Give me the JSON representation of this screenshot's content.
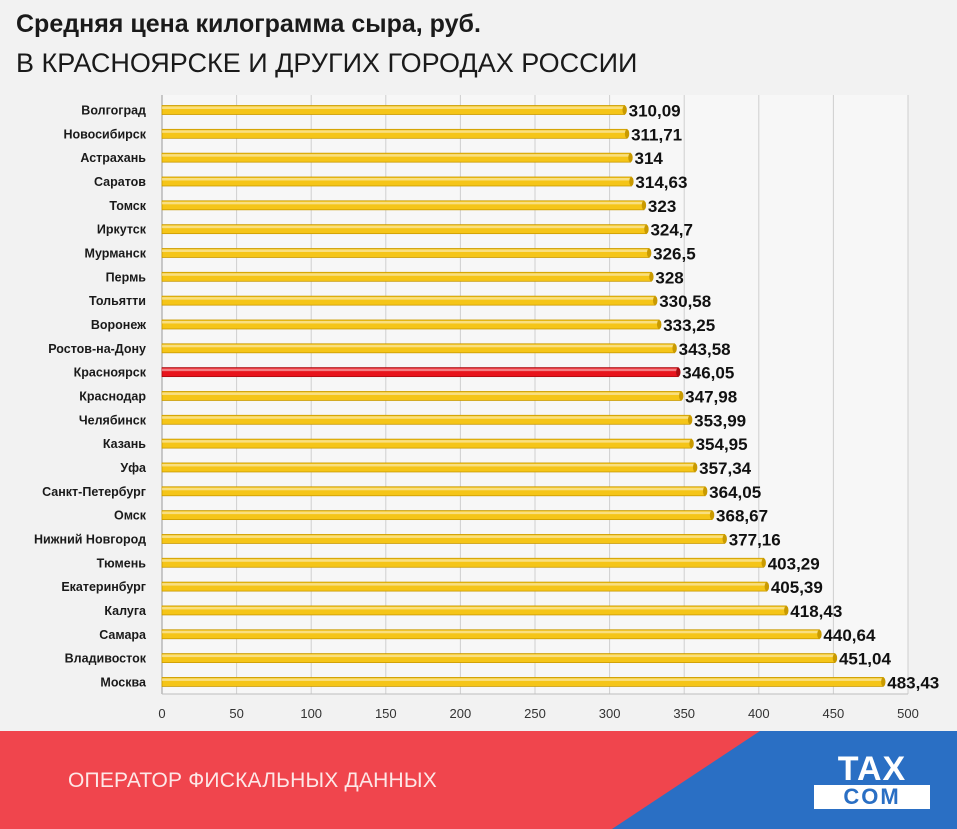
{
  "header": {
    "title": "Средняя цена килограмма сыра, руб.",
    "subtitle": "В КРАСНОЯРСКЕ И ДРУГИХ ГОРОДАХ РОССИИ"
  },
  "chart_data": {
    "type": "bar",
    "orientation": "horizontal",
    "title": "Средняя цена килограмма сыра, руб.",
    "subtitle": "В КРАСНОЯРСКЕ И ДРУГИХ ГОРОДАХ РОССИИ",
    "categories": [
      "Волгоград",
      "Новосибирск",
      "Астрахань",
      "Саратов",
      "Томск",
      "Иркутск",
      "Мурманск",
      "Пермь",
      "Тольятти",
      "Воронеж",
      "Ростов-на-Дону",
      "Красноярск",
      "Краснодар",
      "Челябинск",
      "Казань",
      "Уфа",
      "Санкт-Петербург",
      "Омск",
      "Нижний Новгород",
      "Тюмень",
      "Екатеринбург",
      "Калуга",
      "Самара",
      "Владивосток",
      "Москва"
    ],
    "values": [
      310.09,
      311.71,
      314,
      314.63,
      323,
      324.7,
      326.5,
      328,
      330.58,
      333.25,
      343.58,
      346.05,
      347.98,
      353.99,
      354.95,
      357.34,
      364.05,
      368.67,
      377.16,
      403.29,
      405.39,
      418.43,
      440.64,
      451.04,
      483.43
    ],
    "value_labels": [
      "310,09",
      "311,71",
      "314",
      "314,63",
      "323",
      "324,7",
      "326,5",
      "328",
      "330,58",
      "333,25",
      "343,58",
      "346,05",
      "347,98",
      "353,99",
      "354,95",
      "357,34",
      "364,05",
      "368,67",
      "377,16",
      "403,29",
      "405,39",
      "418,43",
      "440,64",
      "451,04",
      "483,43"
    ],
    "highlight": "Красноярск",
    "xlim": [
      0,
      500
    ],
    "xticks": [
      0,
      50,
      100,
      150,
      200,
      250,
      300,
      350,
      400,
      450,
      500
    ],
    "grid": true,
    "colors": {
      "bar": "#f5c518",
      "bar_edge": "#c99a00",
      "highlight": "#e8141c",
      "highlight_edge": "#a80b10",
      "grid": "#cfcfcf"
    }
  },
  "footer": {
    "operator": "ОПЕРАТОР ФИСКАЛЬНЫХ ДАННЫХ",
    "logo_top": "TAX",
    "logo_bottom": "COM",
    "colors": {
      "red": "#f0454d",
      "blue": "#2a6fc4"
    }
  }
}
